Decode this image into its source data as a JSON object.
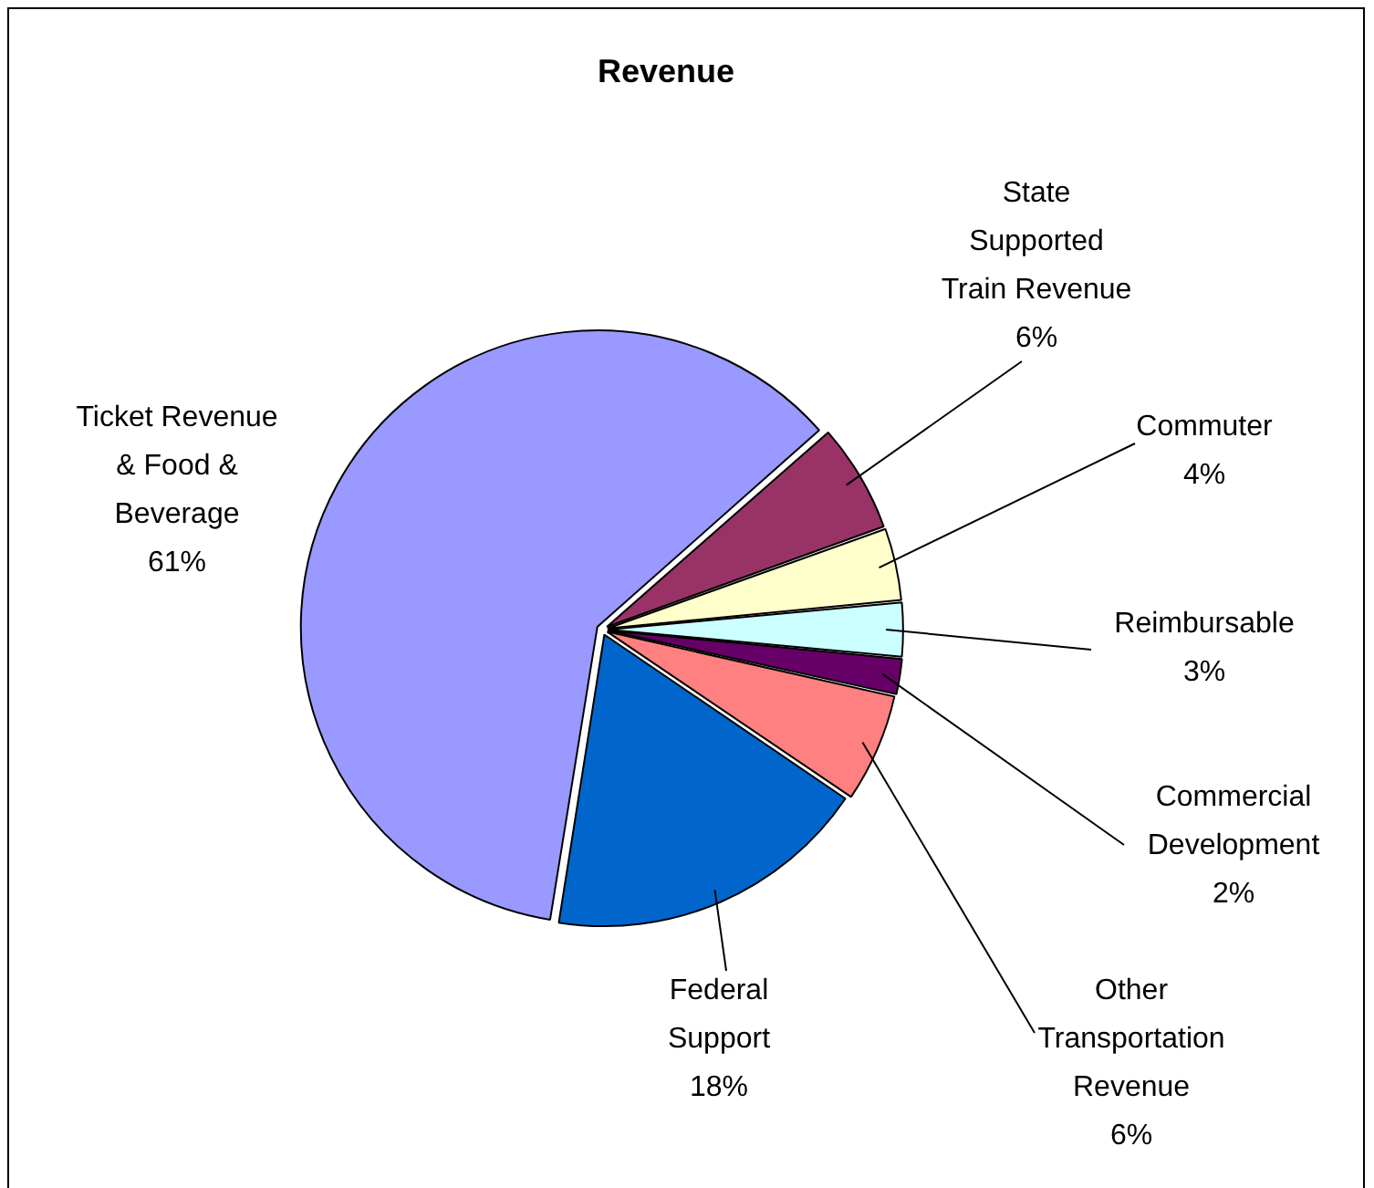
{
  "chart_data": {
    "type": "pie",
    "title": "Revenue",
    "categories": [
      "Ticket Revenue & Food & Beverage",
      "State Supported Train Revenue",
      "Commuter",
      "Reimbursable",
      "Commercial Development",
      "Other Transportation Revenue",
      "Federal Support"
    ],
    "values": [
      61,
      6,
      4,
      3,
      2,
      6,
      18
    ],
    "value_labels": [
      "61%",
      "6%",
      "4%",
      "3%",
      "2%",
      "6%",
      "18%"
    ],
    "colors": [
      "#9999ff",
      "#993366",
      "#ffffcc",
      "#ccffff",
      "#660066",
      "#ff8080",
      "#0066cc"
    ],
    "legend": false
  }
}
